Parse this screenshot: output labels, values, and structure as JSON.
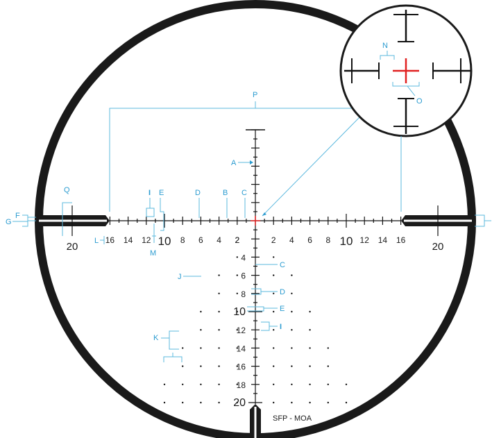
{
  "caption": "SFP - MOA",
  "scale": {
    "left_labels": [
      "16",
      "14",
      "12",
      "10",
      "8",
      "6",
      "4",
      "2"
    ],
    "right_labels": [
      "2",
      "4",
      "6",
      "8",
      "10",
      "12",
      "14",
      "16"
    ],
    "down_labels": [
      "4",
      "6",
      "8",
      "10",
      "12",
      "14",
      "16",
      "18",
      "20"
    ],
    "post_left_label": "20",
    "post_right_label": "20"
  },
  "callouts": {
    "A": "A",
    "B": "B",
    "C_top": "C",
    "C_right": "C",
    "D_top": "D",
    "D_right": "D",
    "E_top": "E",
    "E_right": "E",
    "F": "F",
    "G": "G",
    "I_top": "I",
    "I_right": "I",
    "J": "J",
    "K": "K",
    "L": "L",
    "M": "M",
    "N": "N",
    "O": "O",
    "P": "P",
    "Q": "Q"
  },
  "colors": {
    "reticle": "#111111",
    "callout": "#2a9bd0",
    "center": "#e02020"
  }
}
